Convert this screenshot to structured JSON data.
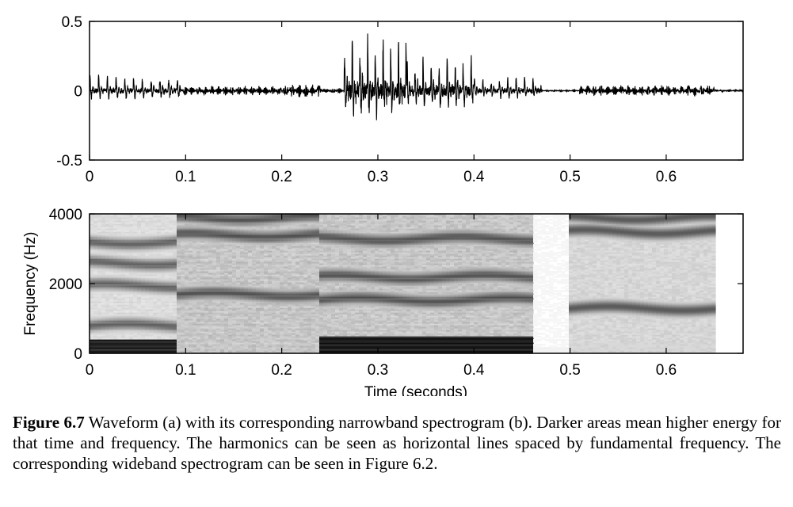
{
  "chart_data": [
    {
      "type": "line",
      "xlim": [
        0,
        0.68
      ],
      "ylim": [
        -0.5,
        0.5
      ],
      "x_ticks": [
        0,
        0.1,
        0.2,
        0.3,
        0.4,
        0.5,
        0.6
      ],
      "x_tick_labels": [
        "0",
        "0.1",
        "0.2",
        "0.3",
        "0.4",
        "0.5",
        "0.6"
      ],
      "y_ticks": [
        0.5,
        0,
        -0.5
      ],
      "y_tick_labels": [
        "0.5",
        "0",
        "-0.5"
      ],
      "grid": false,
      "segments": [
        {
          "t0": 0.0,
          "t1": 0.095,
          "amp": 0.14,
          "f0": 110
        },
        {
          "t0": 0.095,
          "t1": 0.2,
          "amp": 0.035,
          "f0": 150
        },
        {
          "t0": 0.2,
          "t1": 0.24,
          "amp": 0.05,
          "f0": 150
        },
        {
          "t0": 0.24,
          "t1": 0.265,
          "amp": 0.02,
          "f0": 140
        },
        {
          "t0": 0.265,
          "t1": 0.33,
          "amp": 0.47,
          "f0": 125
        },
        {
          "t0": 0.33,
          "t1": 0.4,
          "amp": 0.3,
          "f0": 120
        },
        {
          "t0": 0.4,
          "t1": 0.47,
          "amp": 0.13,
          "f0": 115
        },
        {
          "t0": 0.47,
          "t1": 0.51,
          "amp": 0.006,
          "f0": 100
        },
        {
          "t0": 0.51,
          "t1": 0.65,
          "amp": 0.04,
          "f0": 180
        },
        {
          "t0": 0.65,
          "t1": 0.68,
          "amp": 0.01,
          "f0": 150
        }
      ]
    },
    {
      "type": "heatmap",
      "xlim": [
        0,
        0.68
      ],
      "ylim": [
        0,
        4000
      ],
      "x_ticks": [
        0,
        0.1,
        0.2,
        0.3,
        0.4,
        0.5,
        0.6
      ],
      "x_tick_labels": [
        "0",
        "0.1",
        "0.2",
        "0.3",
        "0.4",
        "0.5",
        "0.6"
      ],
      "y_ticks": [
        0,
        2000,
        4000
      ],
      "y_tick_labels": [
        "0",
        "2000",
        "4000"
      ],
      "xlabel": "Time (seconds)",
      "ylabel": "Frequency (Hz)",
      "color_scale": "darker = higher energy",
      "regions": [
        {
          "t0": 0.0,
          "t1": 0.09,
          "base": 0.18,
          "low_energy": 0.92,
          "low_max_hz": 400,
          "formants": [
            800,
            1950,
            2600,
            3200
          ],
          "harmonic_hz": 110
        },
        {
          "t0": 0.09,
          "t1": 0.24,
          "base": 0.3,
          "low_energy": 0.2,
          "low_max_hz": 300,
          "formants": [
            1700,
            3400,
            3900
          ],
          "harmonic_hz": 150
        },
        {
          "t0": 0.24,
          "t1": 0.46,
          "base": 0.3,
          "low_energy": 0.95,
          "low_max_hz": 500,
          "formants": [
            1550,
            2200,
            3300
          ],
          "harmonic_hz": 120
        },
        {
          "t0": 0.46,
          "t1": 0.5,
          "base": 0.04,
          "low_energy": 0.05,
          "low_max_hz": 200,
          "formants": [],
          "harmonic_hz": 0
        },
        {
          "t0": 0.5,
          "t1": 0.65,
          "base": 0.2,
          "low_energy": 0.15,
          "low_max_hz": 300,
          "formants": [
            1300,
            3500,
            3900
          ],
          "harmonic_hz": 0
        },
        {
          "t0": 0.65,
          "t1": 0.68,
          "base": 0.0,
          "low_energy": 0.0,
          "low_max_hz": 0,
          "formants": [],
          "harmonic_hz": 0
        }
      ]
    }
  ],
  "caption": {
    "label": "Figure 6.7",
    "text": " Waveform (a) with its corresponding narrowband spectrogram (b). Darker areas mean higher energy for that time and frequency. The harmonics can be seen as horizontal lines spaced by fundamental frequency. The corresponding wideband spectrogram can be seen in Figure 6.2."
  }
}
